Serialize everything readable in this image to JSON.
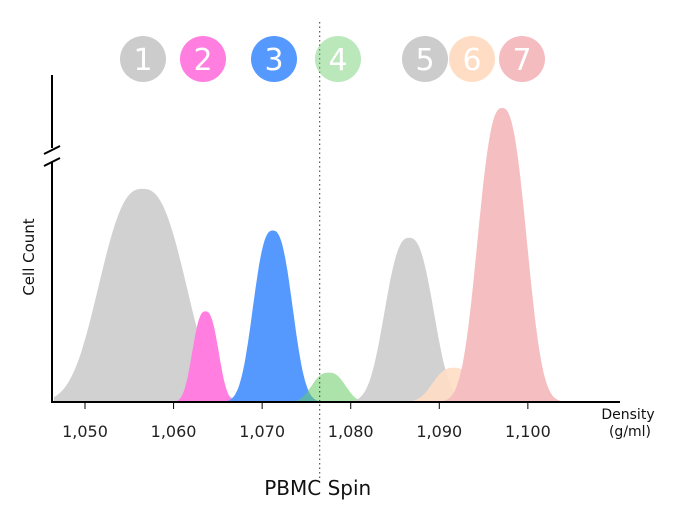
{
  "chart_data": {
    "type": "area",
    "title": "",
    "xlabel": "Density",
    "xlabel_unit": "(g/ml)",
    "ylabel": "Cell Count",
    "x_ticks": [
      1.05,
      1.06,
      1.07,
      1.08,
      1.09,
      1.1
    ],
    "x_tick_labels": [
      "1,050",
      "1,060",
      "1,070",
      "1,080",
      "1,090",
      "1,100"
    ],
    "xlim": [
      1.0465,
      1.1095
    ],
    "y_axis_break": true,
    "grid": false,
    "reference_line": {
      "x": 1.0765,
      "label": "PBMC Spin",
      "style": "dotted"
    },
    "series": [
      {
        "name": "1",
        "color": "#cccccc",
        "center": 1.0565,
        "sigma": 0.0046,
        "peak": 0.87,
        "opacity": 0.9
      },
      {
        "name": "2",
        "color": "#ff7ee0",
        "center": 1.0636,
        "sigma": 0.0014,
        "peak": 0.37,
        "opacity": 1.0
      },
      {
        "name": "3",
        "color": "#5599ff",
        "center": 1.0712,
        "sigma": 0.0021,
        "peak": 0.7,
        "opacity": 1.0
      },
      {
        "name": "4",
        "color": "#66cc66",
        "center": 1.0775,
        "sigma": 0.0018,
        "peak": 0.12,
        "opacity": 0.55
      },
      {
        "name": "5",
        "color": "#cccccc",
        "center": 1.0866,
        "sigma": 0.0026,
        "peak": 0.67,
        "opacity": 0.9
      },
      {
        "name": "6",
        "color": "#ffddc4",
        "center": 1.0916,
        "sigma": 0.0022,
        "peak": 0.14,
        "opacity": 0.9
      },
      {
        "name": "7",
        "color": "#f4bcbf",
        "center": 1.0971,
        "sigma": 0.0026,
        "peak": 1.2,
        "opacity": 0.95
      }
    ],
    "legend": {
      "placement": "top",
      "items": [
        {
          "label": "1",
          "color": "#cccccc",
          "opacity": 1.0
        },
        {
          "label": "2",
          "color": "#ff7ee0",
          "opacity": 1.0
        },
        {
          "label": "3",
          "color": "#5599ff",
          "opacity": 1.0
        },
        {
          "label": "4",
          "color": "#66cc66",
          "opacity": 0.45
        },
        {
          "label": "5",
          "color": "#cccccc",
          "opacity": 1.0
        },
        {
          "label": "6",
          "color": "#ffddc4",
          "opacity": 1.0
        },
        {
          "label": "7",
          "color": "#f4bcbf",
          "opacity": 1.0
        }
      ]
    }
  }
}
